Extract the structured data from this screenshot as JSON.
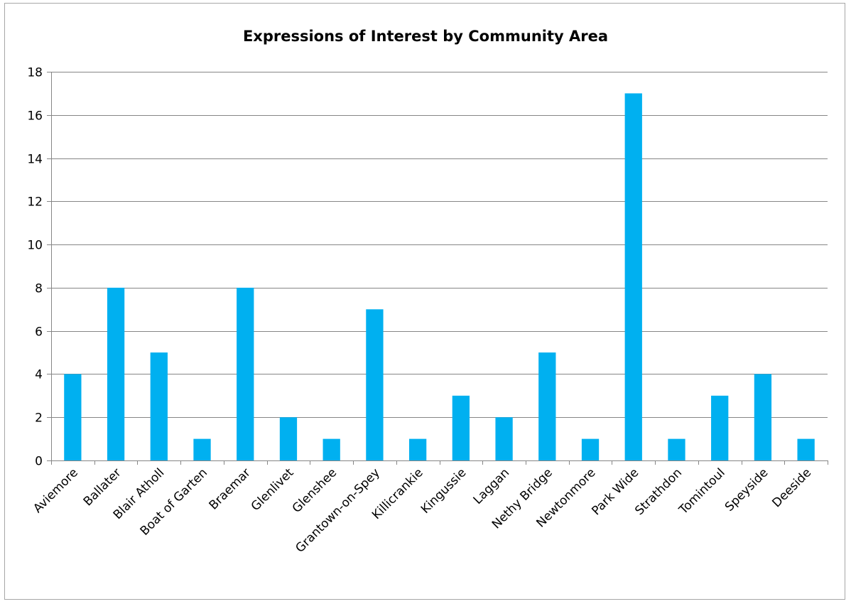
{
  "chart_data": {
    "type": "bar",
    "title": "Expressions of Interest by Community Area",
    "xlabel": "",
    "ylabel": "",
    "categories": [
      "Aviemore",
      "Ballater",
      "Blair Atholl",
      "Boat of Garten",
      "Braemar",
      "Glenlivet",
      "Glenshee",
      "Grantown-on-Spey",
      "Killicrankie",
      "Kingussie",
      "Laggan",
      "Nethy Bridge",
      "Newtonmore",
      "Park Wide",
      "Strathdon",
      "Tomintoul",
      "Speyside",
      "Deeside"
    ],
    "values": [
      4,
      8,
      5,
      1,
      8,
      2,
      1,
      7,
      1,
      3,
      2,
      5,
      1,
      17,
      1,
      3,
      4,
      1
    ],
    "ylim": [
      0,
      18
    ],
    "yticks": [
      0,
      2,
      4,
      6,
      8,
      10,
      12,
      14,
      16,
      18
    ],
    "grid": true,
    "legend": "none",
    "bar_color": "#00b0f0",
    "grid_color": "#868686"
  }
}
